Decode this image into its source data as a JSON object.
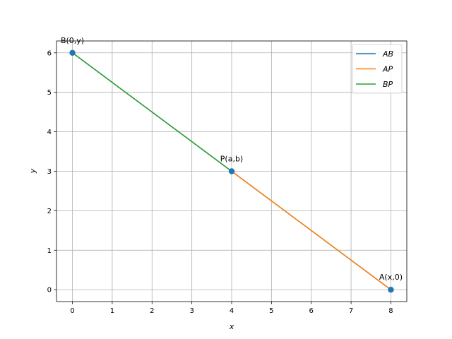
{
  "chart_data": {
    "type": "line",
    "xlabel": "x",
    "ylabel": "y",
    "xlim": [
      -0.4,
      8.4
    ],
    "ylim": [
      -0.3,
      6.3
    ],
    "xticks": [
      "0",
      "1",
      "2",
      "3",
      "4",
      "5",
      "6",
      "7",
      "8"
    ],
    "yticks": [
      "0",
      "1",
      "2",
      "3",
      "4",
      "5",
      "6"
    ],
    "grid": true,
    "legend": "top-right",
    "series": [
      {
        "name": "AB",
        "color": "#1f77b4",
        "x": [
          8,
          0
        ],
        "y": [
          0,
          6
        ]
      },
      {
        "name": "AP",
        "color": "#ff7f0e",
        "x": [
          8,
          4
        ],
        "y": [
          0,
          3
        ]
      },
      {
        "name": "BP",
        "color": "#2ca02c",
        "x": [
          0,
          4
        ],
        "y": [
          6,
          3
        ]
      }
    ],
    "points": [
      {
        "label": "B(0,y)",
        "x": 0,
        "y": 6
      },
      {
        "label": "P(a,b)",
        "x": 4,
        "y": 3
      },
      {
        "label": "A(x,0)",
        "x": 8,
        "y": 0
      }
    ],
    "point_color": "#1f77b4"
  }
}
